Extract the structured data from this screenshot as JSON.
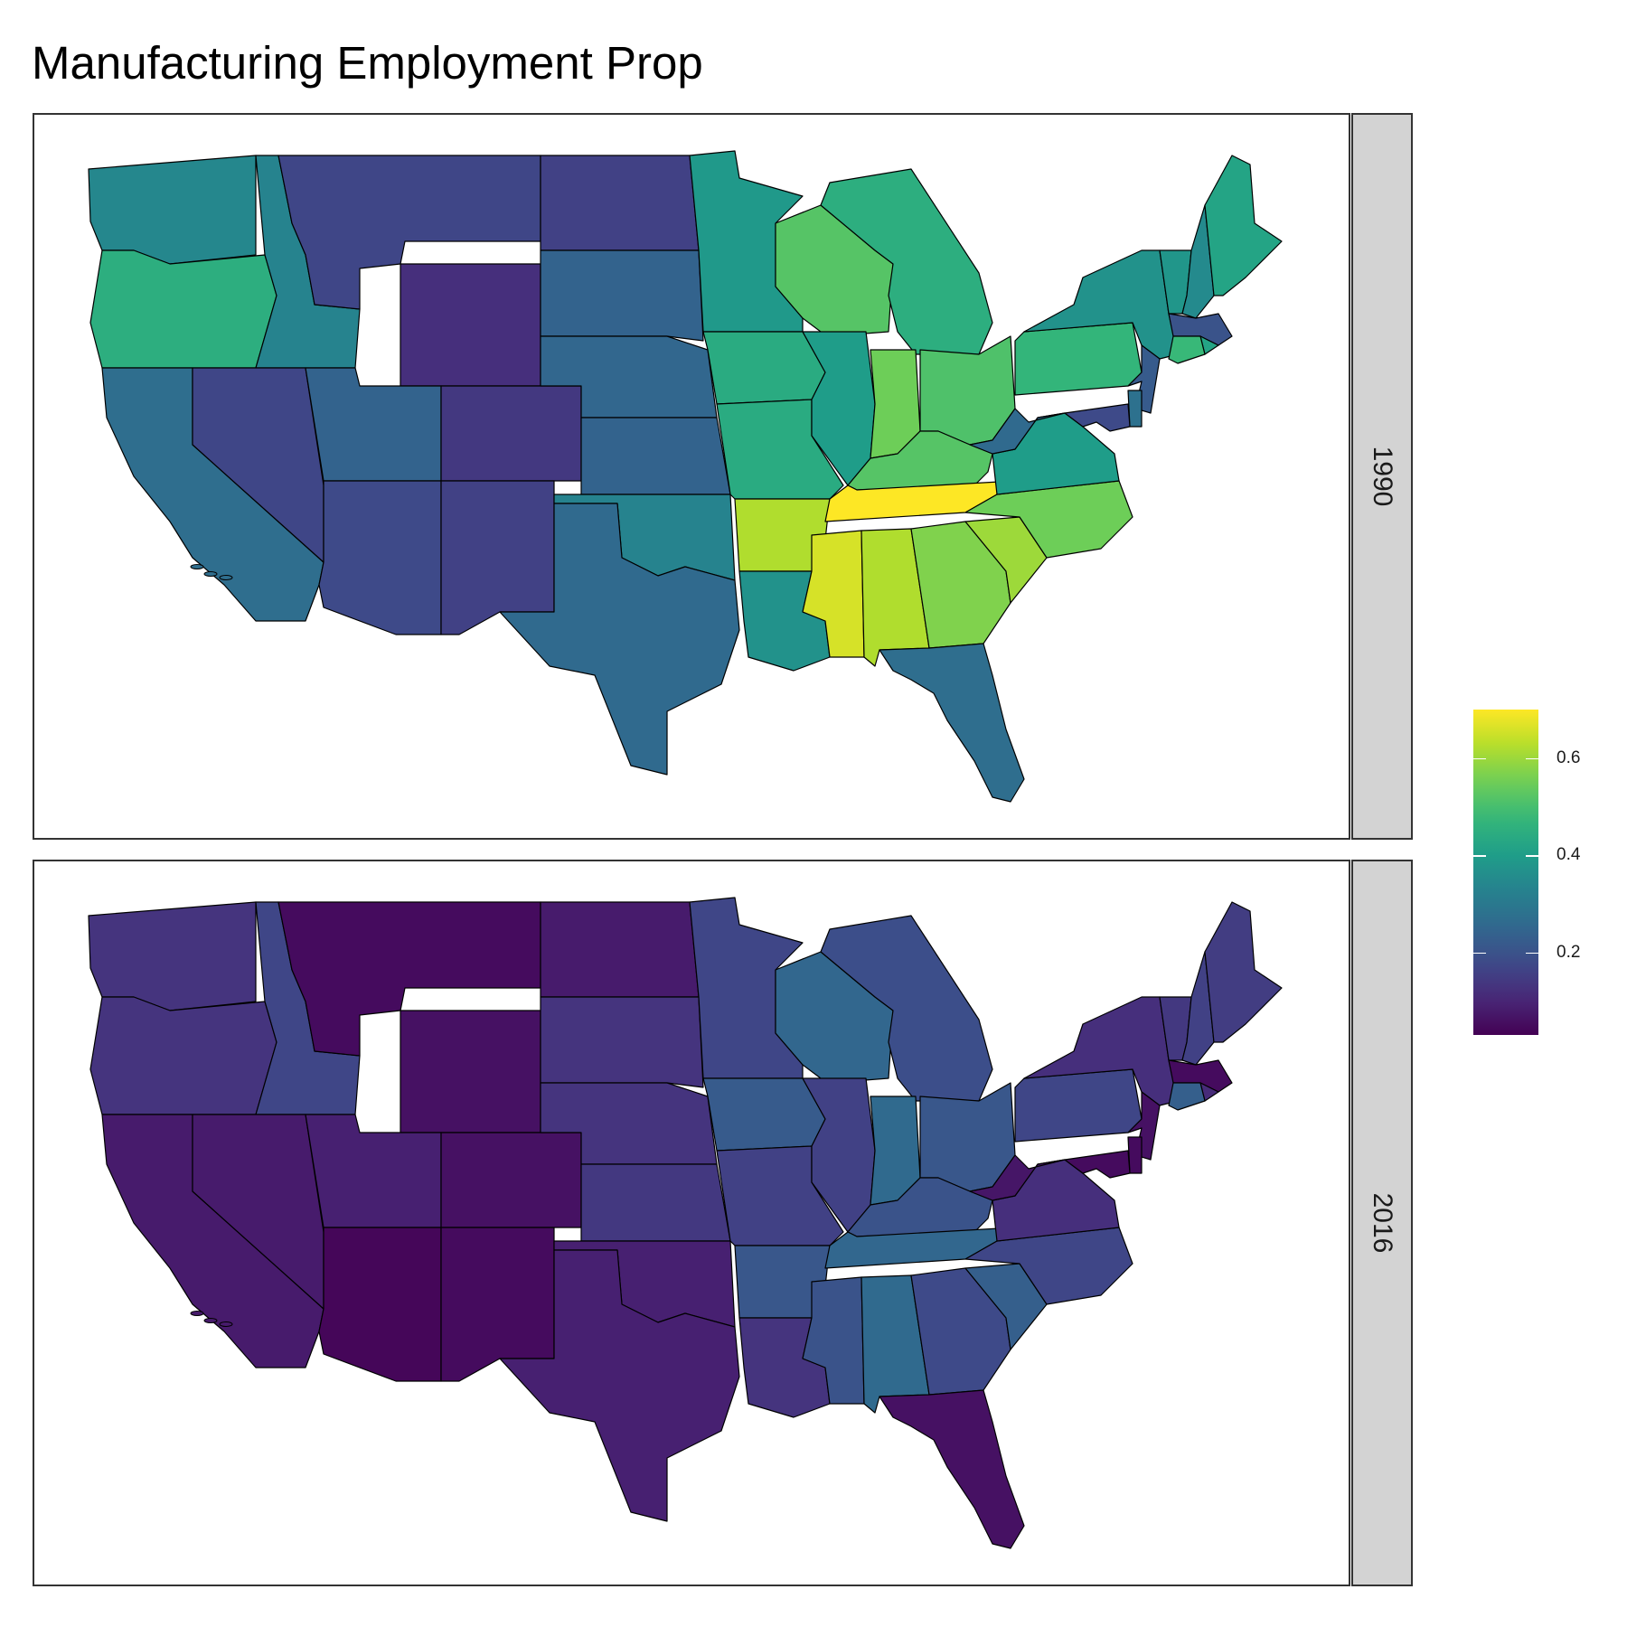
{
  "title": "Manufacturing Employment Prop",
  "chart_data": {
    "type": "choropleth",
    "variable": "",
    "facets": [
      {
        "label": "1990",
        "values": {
          "WA": 0.34,
          "OR": 0.45,
          "CA": 0.27,
          "ID": 0.33,
          "NV": 0.17,
          "MT": 0.17,
          "WY": 0.12,
          "UT": 0.24,
          "AZ": 0.18,
          "CO": 0.14,
          "NM": 0.16,
          "ND": 0.16,
          "SD": 0.24,
          "NE": 0.25,
          "KS": 0.24,
          "OK": 0.33,
          "TX": 0.26,
          "MN": 0.39,
          "IA": 0.44,
          "MO": 0.44,
          "AR": 0.62,
          "LA": 0.37,
          "WI": 0.52,
          "IL": 0.4,
          "MI": 0.45,
          "IN": 0.55,
          "OH": 0.51,
          "KY": 0.52,
          "TN": 0.7,
          "MS": 0.66,
          "AL": 0.62,
          "GA": 0.57,
          "FL": 0.27,
          "SC": 0.6,
          "NC": 0.55,
          "VA": 0.4,
          "WV": 0.26,
          "PA": 0.47,
          "NY": 0.37,
          "VT": 0.38,
          "NH": 0.35,
          "ME": 0.42,
          "MA": 0.2,
          "RI": 0.42,
          "CT": 0.48,
          "NJ": 0.22,
          "DE": 0.28,
          "MD": 0.18
        }
      },
      {
        "label": "2016",
        "values": {
          "WA": 0.13,
          "OR": 0.13,
          "CA": 0.08,
          "ID": 0.17,
          "NV": 0.08,
          "MT": 0.05,
          "WY": 0.06,
          "UT": 0.09,
          "AZ": 0.04,
          "CO": 0.06,
          "NM": 0.05,
          "ND": 0.08,
          "SD": 0.13,
          "NE": 0.13,
          "KS": 0.14,
          "OK": 0.09,
          "TX": 0.09,
          "MN": 0.17,
          "IA": 0.22,
          "MO": 0.16,
          "AR": 0.21,
          "LA": 0.13,
          "WI": 0.25,
          "IL": 0.16,
          "MI": 0.19,
          "IN": 0.26,
          "OH": 0.21,
          "KY": 0.2,
          "TN": 0.25,
          "MS": 0.2,
          "AL": 0.26,
          "GA": 0.18,
          "FL": 0.06,
          "SC": 0.23,
          "NC": 0.17,
          "VA": 0.12,
          "WV": 0.07,
          "PA": 0.17,
          "NY": 0.12,
          "VT": 0.14,
          "NH": 0.16,
          "ME": 0.15,
          "MA": 0.05,
          "RI": 0.11,
          "CT": 0.23,
          "NJ": 0.06,
          "DE": 0.05,
          "MD": 0.05
        }
      }
    ],
    "legend": {
      "range": [
        0.03,
        0.7
      ],
      "ticks": [
        "0.2",
        "0.4",
        "0.6"
      ],
      "palette": "viridis",
      "placement": "right"
    }
  }
}
